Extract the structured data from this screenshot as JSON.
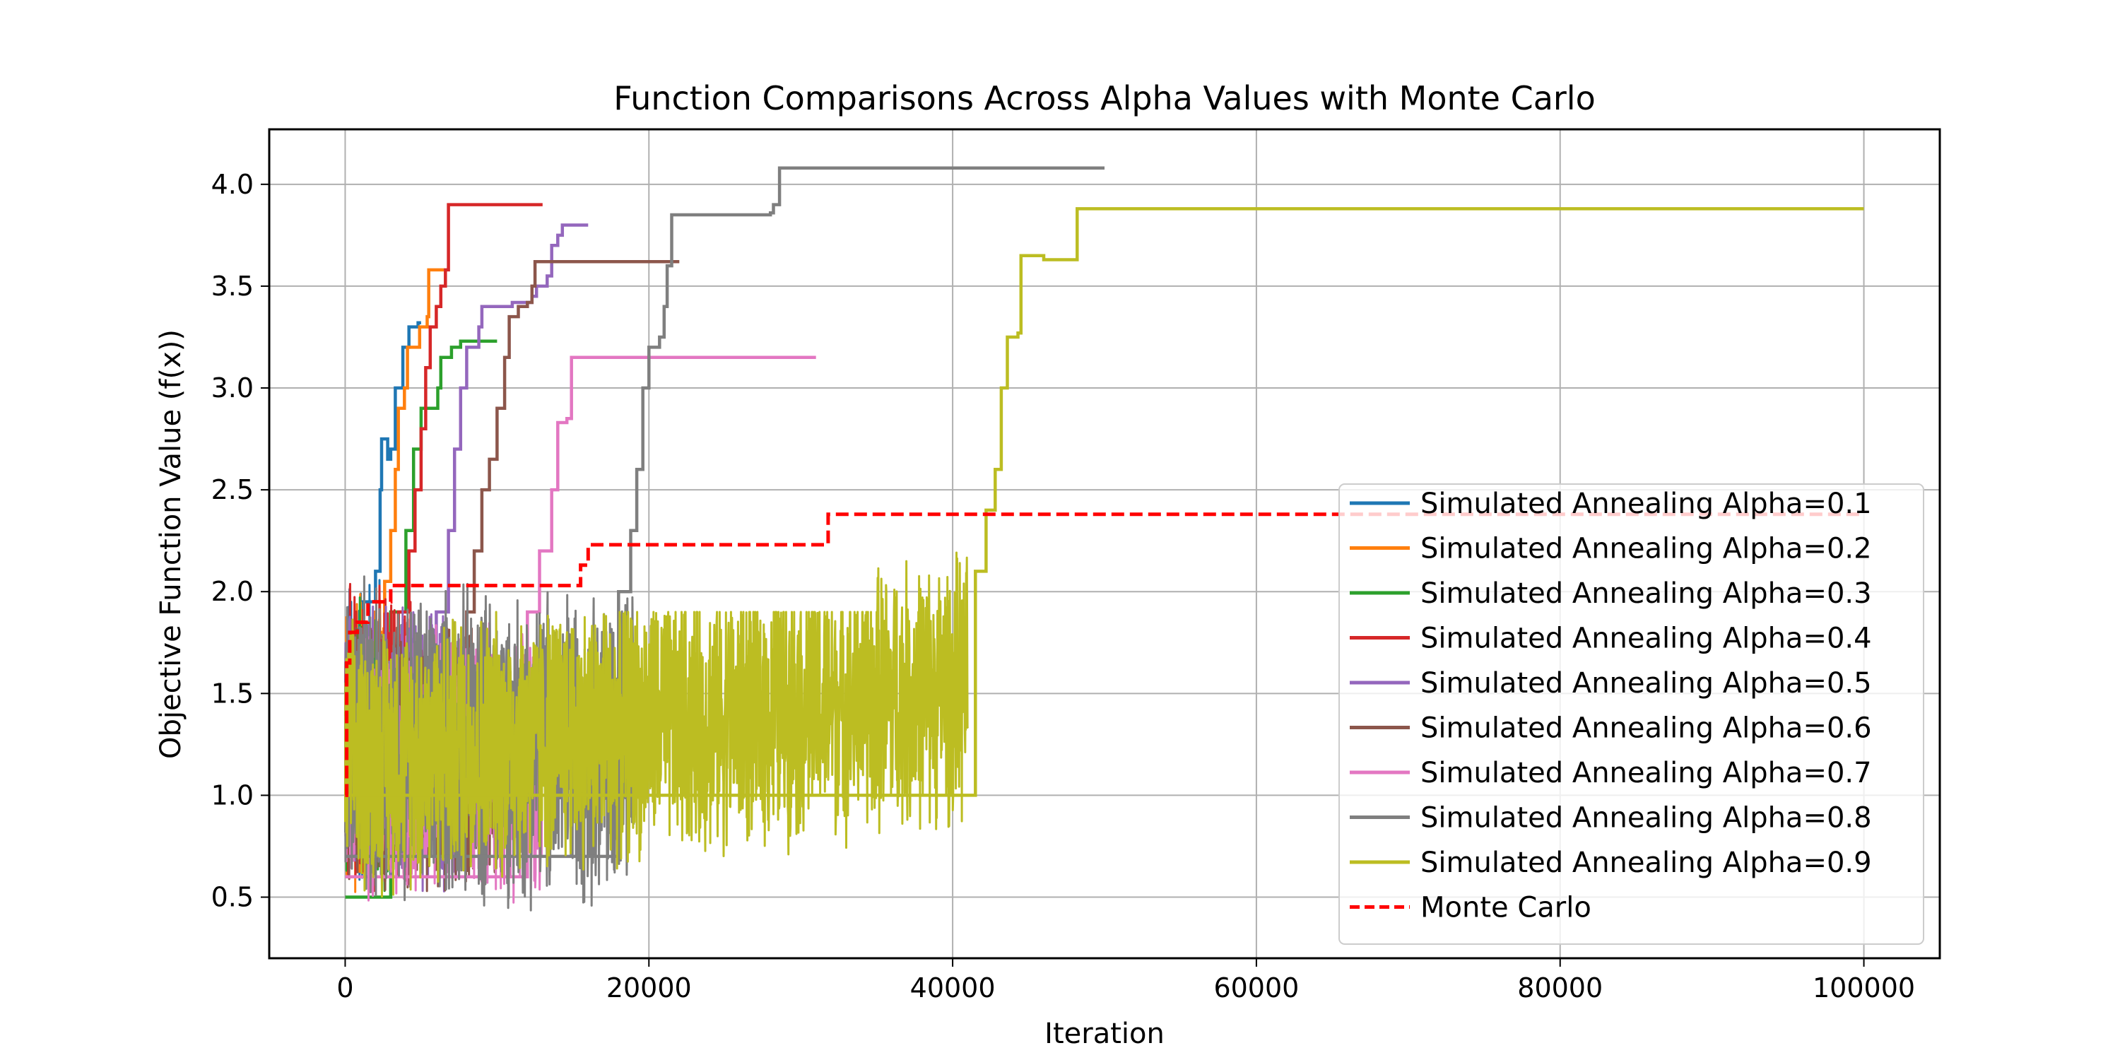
{
  "chart_data": {
    "type": "line",
    "title": "Function Comparisons Across Alpha Values with Monte Carlo",
    "xlabel": "Iteration",
    "ylabel": "Objective Function Value (f(x))",
    "xlim": [
      -5000,
      105000
    ],
    "ylim": [
      0.2,
      4.27
    ],
    "xticks": [
      0,
      20000,
      40000,
      60000,
      80000,
      100000
    ],
    "xtick_labels": [
      "0",
      "20000",
      "40000",
      "60000",
      "80000",
      "100000"
    ],
    "yticks": [
      0.5,
      1.0,
      1.5,
      2.0,
      2.5,
      3.0,
      3.5,
      4.0
    ],
    "ytick_labels": [
      "0.5",
      "1.0",
      "1.5",
      "2.0",
      "2.5",
      "3.0",
      "3.5",
      "4.0"
    ],
    "grid": true,
    "legend_position": "lower-right",
    "series": [
      {
        "name": "Simulated Annealing Alpha=0.1",
        "color": "#1f77b4",
        "style": "solid",
        "best": [
          [
            0,
            0.9
          ],
          [
            600,
            1.6
          ],
          [
            1200,
            1.95
          ],
          [
            2000,
            2.1
          ],
          [
            2300,
            2.5
          ],
          [
            2400,
            2.75
          ],
          [
            2800,
            2.65
          ],
          [
            3000,
            2.7
          ],
          [
            3300,
            3.0
          ],
          [
            3500,
            3.0
          ],
          [
            3800,
            3.2
          ],
          [
            4200,
            3.3
          ],
          [
            4800,
            3.32
          ],
          [
            5000,
            3.32
          ]
        ],
        "noise": {
          "end": 2500,
          "low": 0.42,
          "high": 2.2
        }
      },
      {
        "name": "Simulated Annealing Alpha=0.2",
        "color": "#ff7f0e",
        "style": "solid",
        "best": [
          [
            0,
            0.9
          ],
          [
            1500,
            1.8
          ],
          [
            2600,
            2.05
          ],
          [
            3000,
            2.3
          ],
          [
            3300,
            2.6
          ],
          [
            3500,
            2.9
          ],
          [
            3900,
            3.0
          ],
          [
            4100,
            3.2
          ],
          [
            4600,
            3.2
          ],
          [
            4900,
            3.3
          ],
          [
            5400,
            3.35
          ],
          [
            5500,
            3.58
          ],
          [
            6000,
            3.58
          ],
          [
            6500,
            3.58
          ]
        ],
        "noise": {
          "end": 3000,
          "low": 0.45,
          "high": 2.1
        }
      },
      {
        "name": "Simulated Annealing Alpha=0.3",
        "color": "#2ca02c",
        "style": "solid",
        "best": [
          [
            0,
            0.5
          ],
          [
            3000,
            1.9
          ],
          [
            4000,
            2.3
          ],
          [
            4500,
            2.7
          ],
          [
            5000,
            2.9
          ],
          [
            6000,
            2.9
          ],
          [
            6100,
            3.0
          ],
          [
            6300,
            3.15
          ],
          [
            7000,
            3.2
          ],
          [
            7600,
            3.23
          ],
          [
            10000,
            3.23
          ]
        ],
        "noise": {
          "end": 4000,
          "low": 0.45,
          "high": 2.0
        }
      },
      {
        "name": "Simulated Annealing Alpha=0.4",
        "color": "#d62728",
        "style": "solid",
        "best": [
          [
            0,
            0.9
          ],
          [
            3500,
            1.9
          ],
          [
            4200,
            2.2
          ],
          [
            4600,
            2.5
          ],
          [
            5000,
            2.8
          ],
          [
            5300,
            3.1
          ],
          [
            5600,
            3.3
          ],
          [
            6000,
            3.4
          ],
          [
            6300,
            3.5
          ],
          [
            6600,
            3.58
          ],
          [
            6800,
            3.9
          ],
          [
            13000,
            3.9
          ]
        ],
        "noise": {
          "end": 4500,
          "low": 0.45,
          "high": 2.1
        }
      },
      {
        "name": "Simulated Annealing Alpha=0.5",
        "color": "#9467bd",
        "style": "solid",
        "best": [
          [
            0,
            0.8
          ],
          [
            6000,
            1.9
          ],
          [
            6800,
            2.3
          ],
          [
            7200,
            2.7
          ],
          [
            7600,
            3.0
          ],
          [
            8000,
            3.2
          ],
          [
            8800,
            3.3
          ],
          [
            9000,
            3.4
          ],
          [
            10500,
            3.4
          ],
          [
            11000,
            3.42
          ],
          [
            12300,
            3.45
          ],
          [
            12600,
            3.5
          ],
          [
            13300,
            3.55
          ],
          [
            13600,
            3.7
          ],
          [
            14000,
            3.75
          ],
          [
            14300,
            3.8
          ],
          [
            16000,
            3.8
          ]
        ],
        "noise": {
          "end": 7500,
          "low": 0.45,
          "high": 2.0
        }
      },
      {
        "name": "Simulated Annealing Alpha=0.6",
        "color": "#8c564b",
        "style": "solid",
        "best": [
          [
            0,
            0.8
          ],
          [
            8000,
            1.9
          ],
          [
            8500,
            2.2
          ],
          [
            9000,
            2.5
          ],
          [
            9500,
            2.65
          ],
          [
            10000,
            2.9
          ],
          [
            10500,
            3.15
          ],
          [
            10800,
            3.35
          ],
          [
            11400,
            3.4
          ],
          [
            12000,
            3.42
          ],
          [
            12300,
            3.5
          ],
          [
            12500,
            3.62
          ],
          [
            22000,
            3.62
          ]
        ],
        "noise": {
          "end": 10000,
          "low": 0.45,
          "high": 1.9
        }
      },
      {
        "name": "Simulated Annealing Alpha=0.7",
        "color": "#e377c2",
        "style": "solid",
        "best": [
          [
            0,
            0.6
          ],
          [
            12000,
            1.9
          ],
          [
            12800,
            2.2
          ],
          [
            13600,
            2.5
          ],
          [
            14000,
            2.83
          ],
          [
            14600,
            2.85
          ],
          [
            14900,
            3.15
          ],
          [
            31000,
            3.15
          ]
        ],
        "noise": {
          "end": 13000,
          "low": 0.42,
          "high": 1.9
        }
      },
      {
        "name": "Simulated Annealing Alpha=0.8",
        "color": "#7f7f7f",
        "style": "solid",
        "best": [
          [
            0,
            0.7
          ],
          [
            18000,
            2.0
          ],
          [
            18800,
            2.3
          ],
          [
            19200,
            2.6
          ],
          [
            19600,
            3.0
          ],
          [
            20000,
            3.2
          ],
          [
            20700,
            3.25
          ],
          [
            21000,
            3.4
          ],
          [
            21200,
            3.6
          ],
          [
            21500,
            3.85
          ],
          [
            28000,
            3.86
          ],
          [
            28200,
            3.9
          ],
          [
            28600,
            4.08
          ],
          [
            50000,
            4.08
          ]
        ],
        "noise": {
          "end": 19000,
          "low": 0.4,
          "high": 2.1
        }
      },
      {
        "name": "Simulated Annealing Alpha=0.9",
        "color": "#bcbd22",
        "style": "solid",
        "best": [
          [
            0,
            1.0
          ],
          [
            41500,
            2.1
          ],
          [
            42200,
            2.4
          ],
          [
            42800,
            2.6
          ],
          [
            43200,
            3.0
          ],
          [
            43600,
            3.25
          ],
          [
            44300,
            3.27
          ],
          [
            44500,
            3.65
          ],
          [
            45800,
            3.65
          ],
          [
            46000,
            3.63
          ],
          [
            48000,
            3.63
          ],
          [
            48200,
            3.88
          ],
          [
            100000,
            3.88
          ]
        ],
        "noise": {
          "end": 41000,
          "low": 0.45,
          "high": 1.9
        }
      },
      {
        "name": "Monte Carlo",
        "color": "#ff0000",
        "style": "dashed",
        "steps": [
          [
            0,
            1.0
          ],
          [
            100,
            1.65
          ],
          [
            300,
            1.8
          ],
          [
            800,
            1.85
          ],
          [
            1500,
            1.95
          ],
          [
            3000,
            2.03
          ],
          [
            15000,
            2.03
          ],
          [
            15500,
            2.13
          ],
          [
            16000,
            2.23
          ],
          [
            31500,
            2.23
          ],
          [
            31800,
            2.38
          ],
          [
            100000,
            2.38
          ]
        ]
      }
    ]
  }
}
